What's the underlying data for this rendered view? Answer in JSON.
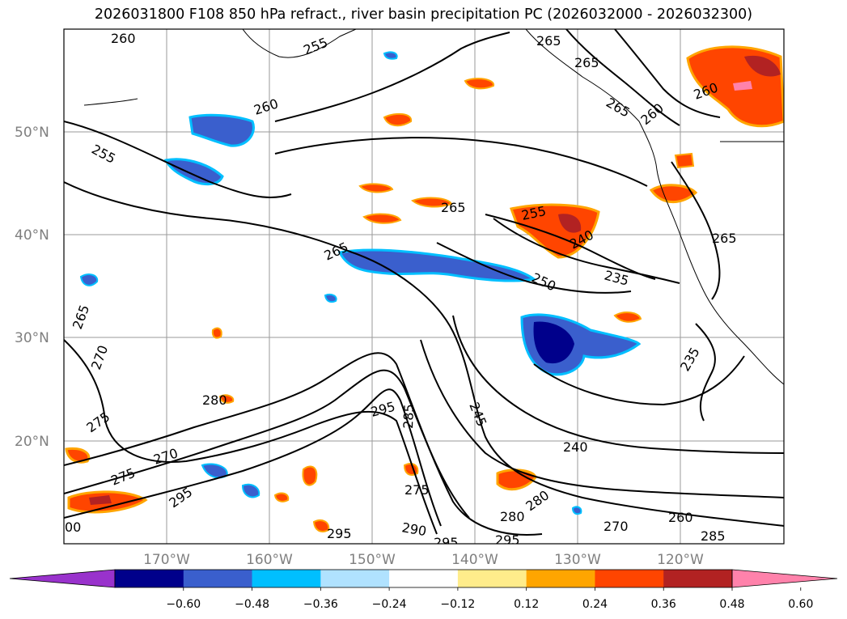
{
  "title": "2026031800 F108 850 hPa refract., river basin precipitation PC (2026032000 - 2026032300)",
  "lat_labels": [
    "50°N",
    "40°N",
    "30°N",
    "20°N"
  ],
  "lon_labels": [
    "170°W",
    "160°W",
    "150°W",
    "140°W",
    "130°W",
    "120°W"
  ],
  "colorbar": {
    "ticks": [
      "−0.60",
      "−0.48",
      "−0.36",
      "−0.24",
      "−0.12",
      "0.12",
      "0.24",
      "0.36",
      "0.48",
      "0.60"
    ],
    "colors": [
      "#9932cc",
      "#00008b",
      "#3a5fcd",
      "#00bfff",
      "#b0e2ff",
      "#ffffff",
      "#ffec8b",
      "#ffa500",
      "#ff4500",
      "#b22222",
      "#ff82ab"
    ]
  },
  "contour_labels": [
    "260",
    "255",
    "265",
    "265",
    "260",
    "260",
    "265",
    "260",
    "255",
    "265",
    "255",
    "240",
    "265",
    "250",
    "235",
    "265",
    "265",
    "270",
    "280",
    "275",
    "295",
    "285",
    "245",
    "235",
    "240",
    "270",
    "275",
    "295",
    "275",
    "280",
    "280",
    "260",
    "270",
    "290",
    "295",
    "295",
    "285",
    "295",
    "00"
  ]
}
